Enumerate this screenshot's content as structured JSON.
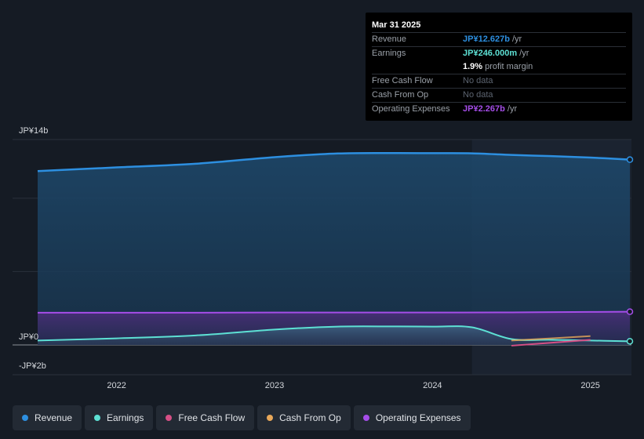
{
  "chart_data": {
    "type": "area",
    "y_axis": {
      "top_label": "JP¥14b",
      "zero_label": "JP¥0",
      "bottom_label": "-JP¥2b",
      "ylim": [
        -2,
        14
      ]
    },
    "x_axis": {
      "ticks": [
        "2022",
        "2023",
        "2024",
        "2025"
      ],
      "tick_values": [
        2022.0,
        2023.0,
        2024.0,
        2025.0
      ],
      "xlim": [
        2021.5,
        2025.25
      ]
    },
    "highlight_start": 2024.25,
    "series": [
      {
        "name": "Revenue",
        "color": "#2d8fe0",
        "x": [
          2021.5,
          2022.0,
          2022.5,
          2023.0,
          2023.4,
          2023.75,
          2024.0,
          2024.25,
          2024.5,
          2024.75,
          2025.0,
          2025.25
        ],
        "values": [
          11.85,
          12.1,
          12.35,
          12.8,
          13.05,
          13.08,
          13.07,
          13.06,
          12.95,
          12.87,
          12.77,
          12.63
        ]
      },
      {
        "name": "Earnings",
        "color": "#5de0d4",
        "x": [
          2021.5,
          2022.0,
          2022.5,
          2023.0,
          2023.4,
          2023.75,
          2024.0,
          2024.25,
          2024.5,
          2024.75,
          2025.0,
          2025.25
        ],
        "values": [
          0.3,
          0.45,
          0.65,
          1.05,
          1.25,
          1.26,
          1.25,
          1.2,
          0.4,
          0.35,
          0.3,
          0.25
        ]
      },
      {
        "name": "Free Cash Flow",
        "color": "#d64f85",
        "x": [
          2024.5,
          2025.0
        ],
        "values": [
          -0.05,
          0.35
        ]
      },
      {
        "name": "Cash From Op",
        "color": "#e8a85a",
        "x": [
          2024.5,
          2025.0
        ],
        "values": [
          0.3,
          0.6
        ]
      },
      {
        "name": "Operating Expenses",
        "color": "#a54de8",
        "x": [
          2021.5,
          2022.0,
          2022.5,
          2023.0,
          2023.5,
          2024.0,
          2024.5,
          2025.0,
          2025.25
        ],
        "values": [
          2.2,
          2.2,
          2.2,
          2.21,
          2.21,
          2.21,
          2.22,
          2.25,
          2.267
        ]
      }
    ]
  },
  "tooltip": {
    "date": "Mar 31 2025",
    "rows": [
      {
        "label": "Revenue",
        "value": "JP¥12.627b",
        "unit": " /yr",
        "color": "#2d8fe0"
      },
      {
        "label": "Earnings",
        "value": "JP¥246.000m",
        "unit": " /yr",
        "color": "#5de0d4"
      },
      {
        "label": "",
        "value": "1.9%",
        "unit": " profit margin",
        "color": "#ffffff"
      },
      {
        "label": "Free Cash Flow",
        "value": "No data",
        "unit": "",
        "color": "nodata"
      },
      {
        "label": "Cash From Op",
        "value": "No data",
        "unit": "",
        "color": "nodata"
      },
      {
        "label": "Operating Expenses",
        "value": "JP¥2.267b",
        "unit": " /yr",
        "color": "#a54de8"
      }
    ]
  },
  "legend": [
    {
      "label": "Revenue",
      "color": "#2d8fe0"
    },
    {
      "label": "Earnings",
      "color": "#5de0d4"
    },
    {
      "label": "Free Cash Flow",
      "color": "#d64f85"
    },
    {
      "label": "Cash From Op",
      "color": "#e8a85a"
    },
    {
      "label": "Operating Expenses",
      "color": "#a54de8"
    }
  ]
}
